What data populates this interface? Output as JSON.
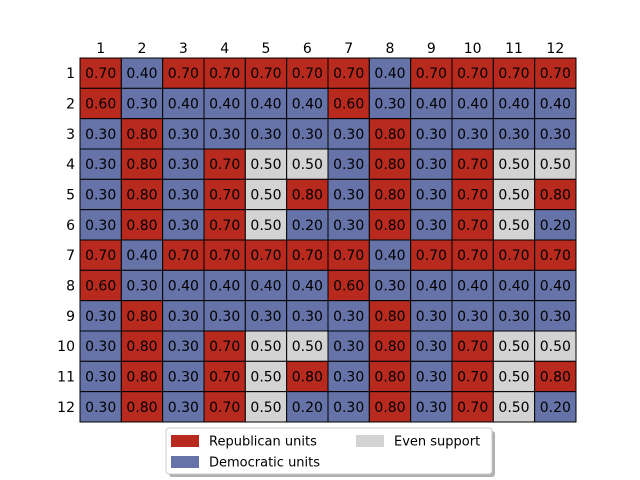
{
  "chart_data": {
    "type": "heatmap",
    "title": "",
    "xlabel": "",
    "ylabel": "",
    "x_ticks": [
      "1",
      "2",
      "3",
      "4",
      "5",
      "6",
      "7",
      "8",
      "9",
      "10",
      "11",
      "12"
    ],
    "y_ticks": [
      "1",
      "2",
      "3",
      "4",
      "5",
      "6",
      "7",
      "8",
      "9",
      "10",
      "11",
      "12"
    ],
    "values": [
      [
        0.7,
        0.4,
        0.7,
        0.7,
        0.7,
        0.7,
        0.7,
        0.4,
        0.7,
        0.7,
        0.7,
        0.7
      ],
      [
        0.6,
        0.3,
        0.4,
        0.4,
        0.4,
        0.4,
        0.6,
        0.3,
        0.4,
        0.4,
        0.4,
        0.4
      ],
      [
        0.3,
        0.8,
        0.3,
        0.3,
        0.3,
        0.3,
        0.3,
        0.8,
        0.3,
        0.3,
        0.3,
        0.3
      ],
      [
        0.3,
        0.8,
        0.3,
        0.7,
        0.5,
        0.5,
        0.3,
        0.8,
        0.3,
        0.7,
        0.5,
        0.5
      ],
      [
        0.3,
        0.8,
        0.3,
        0.7,
        0.5,
        0.8,
        0.3,
        0.8,
        0.3,
        0.7,
        0.5,
        0.8
      ],
      [
        0.3,
        0.8,
        0.3,
        0.7,
        0.5,
        0.2,
        0.3,
        0.8,
        0.3,
        0.7,
        0.5,
        0.2
      ],
      [
        0.7,
        0.4,
        0.7,
        0.7,
        0.7,
        0.7,
        0.7,
        0.4,
        0.7,
        0.7,
        0.7,
        0.7
      ],
      [
        0.6,
        0.3,
        0.4,
        0.4,
        0.4,
        0.4,
        0.6,
        0.3,
        0.4,
        0.4,
        0.4,
        0.4
      ],
      [
        0.3,
        0.8,
        0.3,
        0.3,
        0.3,
        0.3,
        0.3,
        0.8,
        0.3,
        0.3,
        0.3,
        0.3
      ],
      [
        0.3,
        0.8,
        0.3,
        0.7,
        0.5,
        0.5,
        0.3,
        0.8,
        0.3,
        0.7,
        0.5,
        0.5
      ],
      [
        0.3,
        0.8,
        0.3,
        0.7,
        0.5,
        0.8,
        0.3,
        0.8,
        0.3,
        0.7,
        0.5,
        0.8
      ],
      [
        0.3,
        0.8,
        0.3,
        0.7,
        0.5,
        0.2,
        0.3,
        0.8,
        0.3,
        0.7,
        0.5,
        0.2
      ]
    ],
    "value_format_decimals": 2,
    "color_rule": {
      "republican_above": 0.5,
      "democratic_below": 0.5,
      "even_equals": 0.5
    },
    "colors": {
      "republican": "#b8291e",
      "democratic": "#6673a8",
      "even": "#d3d3d3",
      "grid_line": "#000000"
    },
    "legend": {
      "placement": "bottom-center",
      "entries": [
        {
          "key": "republican",
          "label": "Republican units"
        },
        {
          "key": "democratic",
          "label": "Democratic units"
        },
        {
          "key": "even",
          "label": "Even support"
        }
      ]
    },
    "grid": true
  }
}
